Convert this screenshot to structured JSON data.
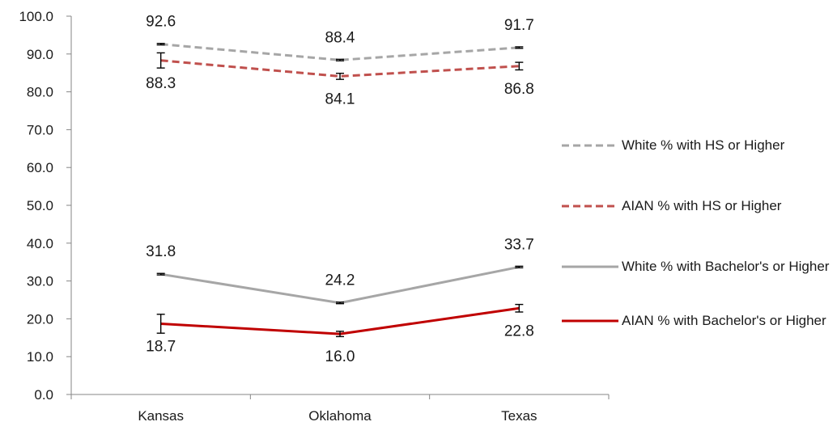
{
  "chart_data": {
    "type": "line",
    "categories": [
      "Kansas",
      "Oklahoma",
      "Texas"
    ],
    "ylim": [
      0,
      100
    ],
    "yticks": [
      "0.0",
      "10.0",
      "20.0",
      "30.0",
      "40.0",
      "50.0",
      "60.0",
      "70.0",
      "80.0",
      "90.0",
      "100.0"
    ],
    "grid": false,
    "legend_position": "right",
    "series": [
      {
        "name": "White % with HS or Higher",
        "values": [
          92.6,
          88.4,
          91.7
        ],
        "labels": [
          "92.6",
          "88.4",
          "91.7"
        ],
        "label_side": [
          "above",
          "above",
          "above"
        ],
        "errors": [
          0.2,
          0.2,
          0.2
        ],
        "color": "#a6a6a6",
        "dashed": true
      },
      {
        "name": "AIAN % with HS or Higher",
        "values": [
          88.3,
          84.1,
          86.8
        ],
        "labels": [
          "88.3",
          "84.1",
          "86.8"
        ],
        "label_side": [
          "below",
          "below",
          "below"
        ],
        "errors": [
          2.0,
          0.8,
          1.0
        ],
        "color": "#c0504d",
        "dashed": true
      },
      {
        "name": "White % with Bachelor's or Higher",
        "values": [
          31.8,
          24.2,
          33.7
        ],
        "labels": [
          "31.8",
          "24.2",
          "33.7"
        ],
        "label_side": [
          "above",
          "above",
          "above"
        ],
        "errors": [
          0.2,
          0.2,
          0.2
        ],
        "color": "#a6a6a6",
        "dashed": false
      },
      {
        "name": "AIAN % with Bachelor's or Higher",
        "values": [
          18.7,
          16.0,
          22.8
        ],
        "labels": [
          "18.7",
          "16.0",
          "22.8"
        ],
        "label_side": [
          "below",
          "below",
          "below"
        ],
        "errors": [
          2.5,
          0.7,
          1.0
        ],
        "color": "#c00000",
        "dashed": false
      }
    ]
  }
}
